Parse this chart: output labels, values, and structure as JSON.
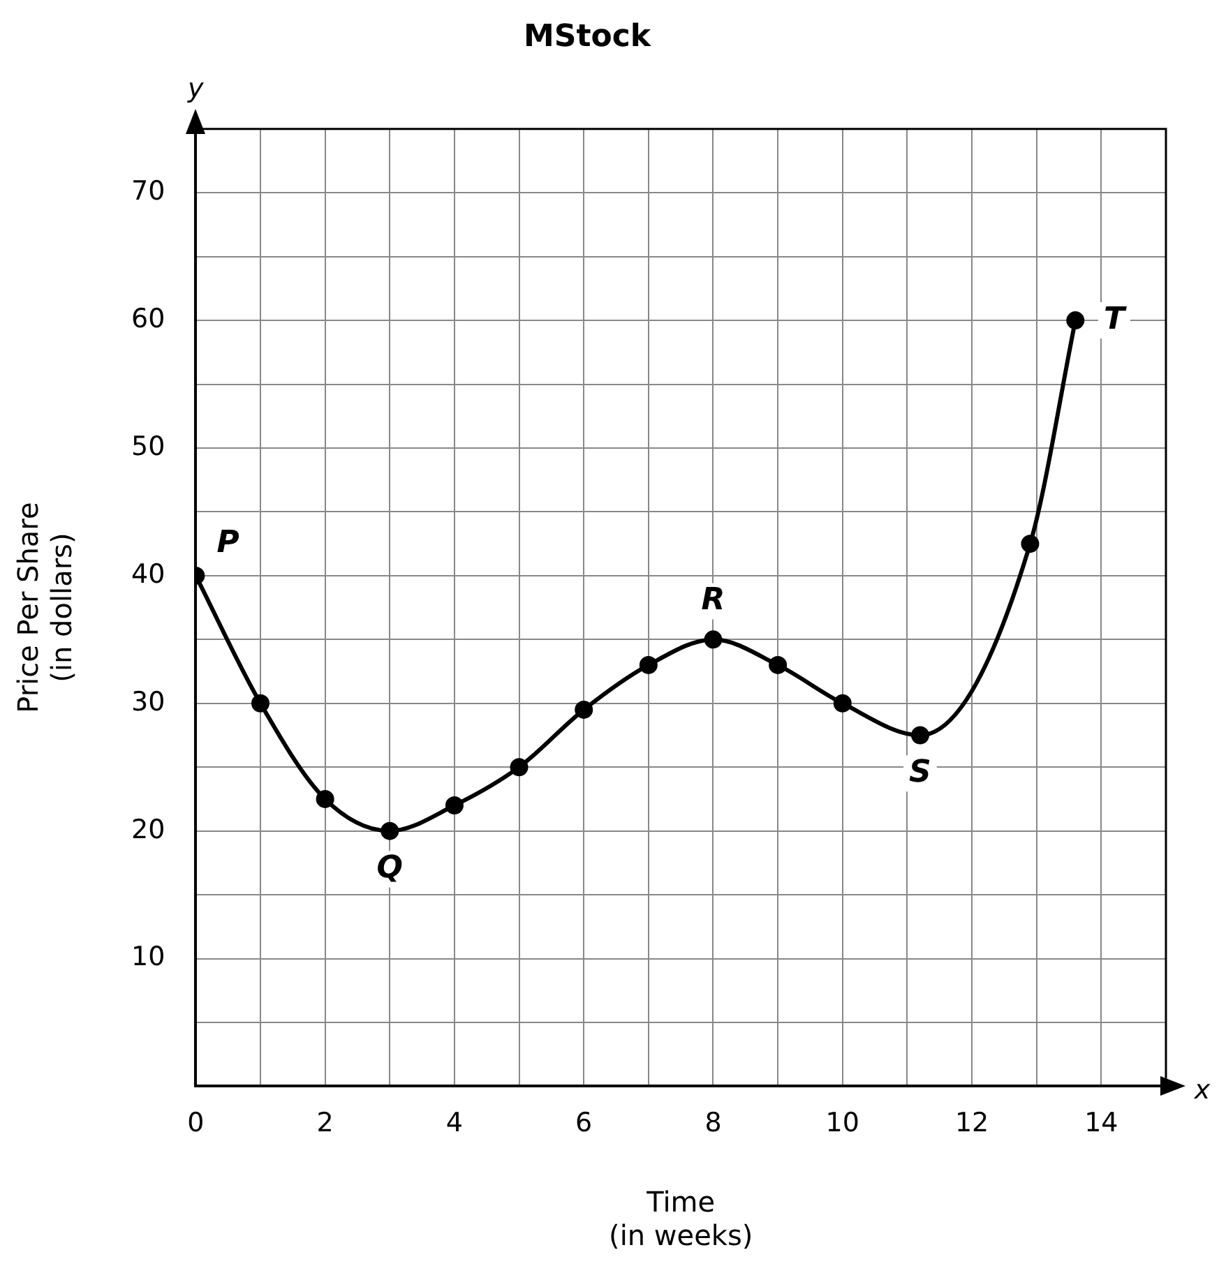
{
  "chart_data": {
    "type": "line",
    "title": "MStock",
    "xlabel": "Time\n(in weeks)",
    "ylabel": "Price Per Share\n(in dollars)",
    "series": [
      {
        "color": "#000000",
        "x": [
          0,
          1,
          2,
          3,
          4,
          5,
          6,
          7,
          8,
          9,
          10,
          11.2,
          12.9,
          13.6
        ],
        "values": [
          40,
          30,
          22.5,
          20,
          22,
          25,
          29.5,
          33,
          35,
          33,
          30,
          27.5,
          42.5,
          60
        ]
      }
    ],
    "xlim": [
      0,
      15
    ],
    "ylim": [
      0,
      75
    ],
    "xticks": [
      0,
      {
        "value": 1,
        "label": null
      },
      2,
      {
        "value": 3,
        "label": null
      },
      4,
      {
        "value": 5,
        "label": null
      },
      6,
      {
        "value": 7,
        "label": null
      },
      8,
      {
        "value": 9,
        "label": null
      },
      10,
      {
        "value": 11,
        "label": null
      },
      12,
      {
        "value": 13,
        "label": null
      },
      14,
      {
        "value": 15,
        "label": null
      }
    ],
    "yticks": [
      {
        "value": 0,
        "label": null
      },
      {
        "value": 5,
        "label": null
      },
      10,
      {
        "value": 15,
        "label": null
      },
      20,
      {
        "value": 25,
        "label": null
      },
      30,
      {
        "value": 35,
        "label": null
      },
      40,
      {
        "value": 45,
        "label": null
      },
      50,
      {
        "value": 55,
        "label": null
      },
      60,
      {
        "value": 65,
        "label": null
      },
      70,
      {
        "value": 75,
        "label": null
      }
    ],
    "grid": true,
    "legend": false,
    "marker": "circle",
    "line_style": "solid",
    "annotations": [
      "y",
      "x",
      {
        "text": "P",
        "x": 0.5,
        "y": 42.5
      },
      {
        "text": "Q",
        "x": 3,
        "y": 17
      },
      {
        "text": "R",
        "x": 8,
        "y": 38
      },
      {
        "text": "S",
        "x": 11.2,
        "y": 24.5
      },
      {
        "text": "T",
        "x": 14.2,
        "y": 60
      }
    ]
  }
}
